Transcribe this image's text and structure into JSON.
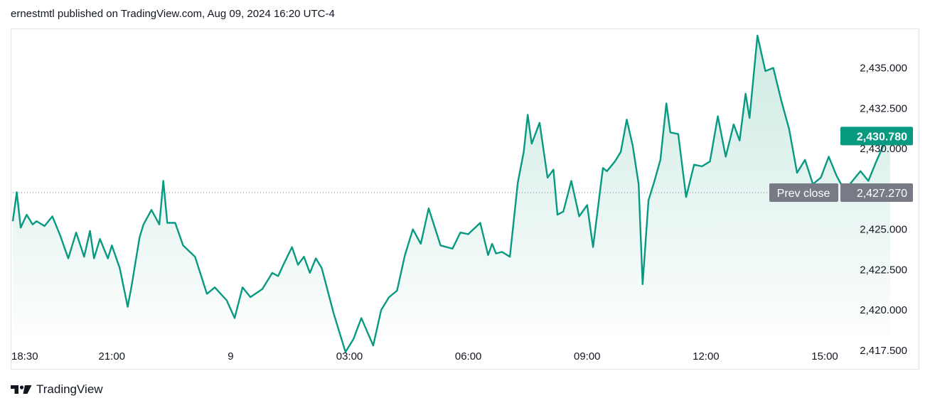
{
  "header": {
    "text": "ernestmtl published on TradingView.com, Aug 09, 2024 16:20 UTC-4"
  },
  "footer": {
    "brand": "TradingView",
    "logo": "tradingview-logo-icon"
  },
  "colors": {
    "line": "#089981",
    "fill_top": "#cdeae3",
    "fill_bottom": "#ffffff",
    "last_label_bg": "#089981",
    "prev_label_bg": "#787b86",
    "border": "#e0e3eb"
  },
  "chart_data": {
    "type": "area",
    "x_tick_labels": [
      "18:30",
      "21:00",
      "9",
      "03:00",
      "06:00",
      "09:00",
      "12:00",
      "15:00"
    ],
    "x_tick_hours": [
      0,
      2.5,
      5.5,
      8.5,
      11.5,
      14.5,
      17.5,
      20.5
    ],
    "y_ticks": [
      2435.0,
      2432.5,
      2430.0,
      2425.0,
      2422.5,
      2420.0,
      2417.5
    ],
    "y_tick_labels": [
      "2,435.000",
      "2,432.500",
      "2,430.000",
      "2,425.000",
      "2,422.500",
      "2,420.000",
      "2,417.500"
    ],
    "ylim": [
      2416.35,
      2437.4
    ],
    "xlim_hours": [
      0,
      22.6
    ],
    "last_price": 2430.78,
    "last_price_label": "2,430.780",
    "prev_close": 2427.27,
    "prev_close_label": "2,427.270",
    "prev_close_text": "Prev close",
    "series": [
      {
        "x_hours": [
          0,
          0.1,
          0.2,
          0.35,
          0.5,
          0.6,
          0.8,
          1.0,
          1.2,
          1.4,
          1.6,
          1.8,
          1.95,
          2.05,
          2.2,
          2.3,
          2.4,
          2.5,
          2.7,
          2.9,
          3.0,
          3.2,
          3.3,
          3.5,
          3.7,
          3.8,
          3.9,
          4.1,
          4.3,
          4.6,
          4.9,
          5.1,
          5.4,
          5.6,
          5.8,
          6.0,
          6.3,
          6.55,
          6.7,
          6.85,
          7.05,
          7.2,
          7.35,
          7.5,
          7.65,
          7.8,
          8.1,
          8.4,
          8.6,
          8.8,
          9.1,
          9.3,
          9.5,
          9.7,
          9.9,
          10.1,
          10.3,
          10.5,
          10.8,
          11.1,
          11.3,
          11.5,
          11.8,
          12.0,
          12.1,
          12.2,
          12.35,
          12.55,
          12.75,
          12.9,
          13.0,
          13.1,
          13.3,
          13.5,
          13.65,
          13.75,
          13.9,
          14.1,
          14.3,
          14.5,
          14.65,
          14.9,
          15.0,
          15.2,
          15.35,
          15.5,
          15.65,
          15.8,
          15.9,
          16.05,
          16.2,
          16.35,
          16.5,
          16.6,
          16.8,
          17.0,
          17.2,
          17.4,
          17.6,
          17.8,
          18.0,
          18.2,
          18.35,
          18.5,
          18.6,
          18.8,
          19.0,
          19.2,
          19.4,
          19.6,
          19.8,
          20.0,
          20.2,
          20.4,
          20.6,
          20.8,
          21.0,
          21.2,
          21.4,
          21.6,
          21.8,
          22.0,
          22.15
        ],
        "values": [
          2425.5,
          2427.3,
          2425.1,
          2425.9,
          2425.3,
          2425.5,
          2425.2,
          2425.8,
          2424.6,
          2423.2,
          2424.8,
          2423.3,
          2424.9,
          2423.2,
          2424.4,
          2423.8,
          2423.2,
          2424.0,
          2422.6,
          2420.2,
          2421.5,
          2424.5,
          2425.3,
          2426.2,
          2425.3,
          2428.0,
          2425.4,
          2425.4,
          2424.0,
          2423.3,
          2421.0,
          2421.4,
          2420.6,
          2419.5,
          2421.4,
          2420.8,
          2421.3,
          2422.3,
          2422.1,
          2422.9,
          2423.9,
          2422.8,
          2423.3,
          2422.3,
          2423.2,
          2422.6,
          2419.8,
          2417.4,
          2418.2,
          2419.5,
          2417.8,
          2420.0,
          2420.8,
          2421.2,
          2423.4,
          2425.0,
          2424.1,
          2426.3,
          2424.0,
          2423.8,
          2424.8,
          2424.7,
          2425.4,
          2423.4,
          2424.1,
          2423.5,
          2423.6,
          2423.3,
          2427.9,
          2429.8,
          2432.1,
          2430.3,
          2431.6,
          2428.2,
          2428.7,
          2425.9,
          2426.1,
          2428.0,
          2425.8,
          2426.5,
          2423.9,
          2428.8,
          2428.6,
          2429.2,
          2429.8,
          2431.8,
          2430.2,
          2427.8,
          2421.6,
          2426.8,
          2428.0,
          2429.3,
          2432.8,
          2431.0,
          2430.9,
          2427.0,
          2429.0,
          2428.9,
          2429.2,
          2432.0,
          2429.5,
          2431.5,
          2430.5,
          2433.4,
          2431.9,
          2437.0,
          2434.8,
          2435.0,
          2433.0,
          2431.2,
          2428.5,
          2429.3,
          2427.8,
          2428.2,
          2429.5,
          2428.3,
          2427.4,
          2428.0,
          2428.6,
          2428.0,
          2429.2,
          2430.3,
          2430.78
        ]
      }
    ]
  }
}
